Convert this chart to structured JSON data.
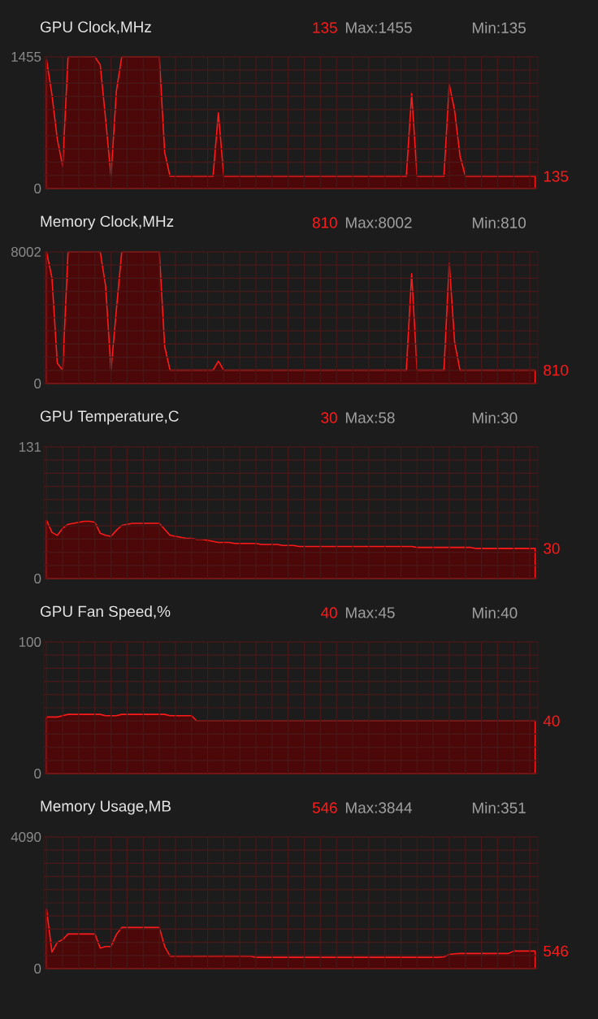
{
  "chart_data": [
    {
      "type": "area",
      "title": "GPU Clock,MHz",
      "color": "#ff1a1a",
      "grid": true,
      "tick_labels": "y",
      "categories": [
        null,
        null,
        null,
        null,
        null,
        null,
        null,
        null,
        null,
        null,
        null,
        null,
        null,
        null,
        null,
        null,
        null,
        null,
        null,
        null,
        null,
        null,
        null,
        null,
        null,
        null,
        null,
        null,
        null,
        null,
        null,
        null,
        null,
        null,
        null,
        null,
        null,
        null,
        null,
        null,
        null,
        null,
        null,
        null,
        null,
        null,
        null,
        null,
        null,
        null,
        null,
        null,
        null,
        null,
        null,
        null,
        null,
        null,
        null,
        null,
        null,
        null,
        null,
        null,
        null,
        null,
        null,
        null,
        null,
        null,
        null,
        null,
        null,
        null,
        null,
        null,
        null,
        null,
        null,
        null,
        null,
        null,
        null,
        null,
        null,
        null,
        null,
        null,
        null,
        null,
        null,
        null
      ],
      "ylim": [
        0,
        1455
      ],
      "yticks": [
        0,
        {
          "value": 145.5,
          "label": null
        },
        {
          "value": 291,
          "label": null
        },
        {
          "value": 436.5,
          "label": null
        },
        {
          "value": 582,
          "label": null
        },
        {
          "value": 727.5,
          "label": null
        },
        {
          "value": 873,
          "label": null
        },
        {
          "value": 1018.5,
          "label": null
        },
        {
          "value": 1164,
          "label": null
        },
        {
          "value": 1309.5,
          "label": null
        },
        1455
      ],
      "values": [
        1425,
        1036,
        547,
        246,
        1455,
        1455,
        1455,
        1455,
        1455,
        1455,
        1366,
        766,
        135,
        1076,
        1455,
        1455,
        1455,
        1455,
        1455,
        1455,
        1455,
        1455,
        399,
        135,
        135,
        135,
        135,
        135,
        135,
        135,
        135,
        135,
        836,
        135,
        135,
        135,
        135,
        135,
        135,
        135,
        135,
        135,
        135,
        135,
        135,
        135,
        135,
        135,
        135,
        135,
        135,
        135,
        135,
        135,
        135,
        135,
        135,
        135,
        135,
        135,
        135,
        135,
        135,
        135,
        135,
        135,
        135,
        135,
        1050,
        135,
        135,
        135,
        135,
        135,
        135,
        1150,
        860,
        362,
        135,
        135,
        135,
        135,
        135,
        135,
        135,
        135,
        135,
        135,
        135,
        135,
        135,
        135
      ],
      "annotations": [
        "135",
        "Max:1455",
        "Min:135",
        "135"
      ]
    },
    {
      "type": "area",
      "title": "Memory Clock,MHz",
      "color": "#ff1a1a",
      "grid": true,
      "tick_labels": "y",
      "categories": [
        null,
        null,
        null,
        null,
        null,
        null,
        null,
        null,
        null,
        null,
        null,
        null,
        null,
        null,
        null,
        null,
        null,
        null,
        null,
        null,
        null,
        null,
        null,
        null,
        null,
        null,
        null,
        null,
        null,
        null,
        null,
        null,
        null,
        null,
        null,
        null,
        null,
        null,
        null,
        null,
        null,
        null,
        null,
        null,
        null,
        null,
        null,
        null,
        null,
        null,
        null,
        null,
        null,
        null,
        null,
        null,
        null,
        null,
        null,
        null,
        null,
        null,
        null,
        null,
        null,
        null,
        null,
        null,
        null,
        null,
        null,
        null,
        null,
        null,
        null,
        null,
        null,
        null,
        null,
        null,
        null,
        null,
        null,
        null,
        null,
        null,
        null,
        null,
        null,
        null,
        null,
        null
      ],
      "ylim": [
        0,
        8002
      ],
      "yticks": [
        0,
        {
          "value": 800.2,
          "label": null
        },
        {
          "value": 1600.4,
          "label": null
        },
        {
          "value": 2400.6,
          "label": null
        },
        {
          "value": 3200.8,
          "label": null
        },
        {
          "value": 4001,
          "label": null
        },
        {
          "value": 4801.2,
          "label": null
        },
        {
          "value": 5601.4,
          "label": null
        },
        {
          "value": 6401.6,
          "label": null
        },
        {
          "value": 7201.8,
          "label": null
        },
        8002
      ],
      "values": [
        8002,
        6421,
        1251,
        810,
        8002,
        8002,
        8002,
        8002,
        8002,
        8002,
        8002,
        5933,
        810,
        4489,
        8002,
        8002,
        8002,
        8002,
        8002,
        8002,
        8002,
        8002,
        2248,
        810,
        810,
        810,
        810,
        810,
        810,
        810,
        810,
        810,
        1361,
        810,
        810,
        810,
        810,
        810,
        810,
        810,
        810,
        810,
        810,
        810,
        810,
        810,
        810,
        810,
        810,
        810,
        810,
        810,
        810,
        810,
        810,
        810,
        810,
        810,
        810,
        810,
        810,
        810,
        810,
        810,
        810,
        810,
        810,
        810,
        6683,
        810,
        810,
        810,
        810,
        810,
        810,
        7343,
        2510,
        810,
        810,
        810,
        810,
        810,
        810,
        810,
        810,
        810,
        810,
        810,
        810,
        810,
        810,
        810
      ],
      "annotations": [
        "810",
        "Max:8002",
        "Min:810",
        "810"
      ]
    },
    {
      "type": "area",
      "title": "GPU Temperature,C",
      "color": "#ff1a1a",
      "grid": true,
      "tick_labels": "y",
      "categories": [
        null,
        null,
        null,
        null,
        null,
        null,
        null,
        null,
        null,
        null,
        null,
        null,
        null,
        null,
        null,
        null,
        null,
        null,
        null,
        null,
        null,
        null,
        null,
        null,
        null,
        null,
        null,
        null,
        null,
        null,
        null,
        null,
        null,
        null,
        null,
        null,
        null,
        null,
        null,
        null,
        null,
        null,
        null,
        null,
        null,
        null,
        null,
        null,
        null,
        null,
        null,
        null,
        null,
        null,
        null,
        null,
        null,
        null,
        null,
        null,
        null,
        null,
        null,
        null,
        null,
        null,
        null,
        null,
        null,
        null,
        null,
        null,
        null,
        null,
        null,
        null,
        null,
        null,
        null,
        null,
        null,
        null,
        null,
        null,
        null,
        null,
        null,
        null,
        null,
        null,
        null,
        null
      ],
      "ylim": [
        0,
        131
      ],
      "yticks": [
        0,
        {
          "value": 13.1,
          "label": null
        },
        {
          "value": 26.2,
          "label": null
        },
        {
          "value": 39.3,
          "label": null
        },
        {
          "value": 52.4,
          "label": null
        },
        {
          "value": 65.5,
          "label": null
        },
        {
          "value": 78.6,
          "label": null
        },
        {
          "value": 91.7,
          "label": null
        },
        {
          "value": 104.8,
          "label": null
        },
        {
          "value": 117.9,
          "label": null
        },
        131
      ],
      "values": [
        58,
        46,
        43,
        50,
        54,
        55,
        56,
        57,
        57,
        56,
        45,
        43,
        42,
        48,
        53,
        54,
        55,
        55,
        55,
        55,
        55,
        55,
        49,
        43,
        42,
        41,
        40,
        40,
        39,
        39,
        38,
        37,
        36,
        36,
        36,
        35,
        35,
        35,
        35,
        35,
        34,
        34,
        34,
        34,
        33,
        33,
        33,
        32,
        32,
        32,
        32,
        32,
        32,
        32,
        32,
        32,
        32,
        32,
        32,
        32,
        32,
        32,
        32,
        32,
        32,
        32,
        32,
        32,
        32,
        31,
        31,
        31,
        31,
        31,
        31,
        31,
        31,
        31,
        31,
        31,
        30,
        30,
        30,
        30,
        30,
        30,
        30,
        30,
        30,
        30,
        30,
        30
      ],
      "annotations": [
        "30",
        "Max:58",
        "Min:30",
        "30"
      ]
    },
    {
      "type": "area",
      "title": "GPU Fan Speed,%",
      "color": "#ff1a1a",
      "grid": true,
      "tick_labels": "y",
      "categories": [
        null,
        null,
        null,
        null,
        null,
        null,
        null,
        null,
        null,
        null,
        null,
        null,
        null,
        null,
        null,
        null,
        null,
        null,
        null,
        null,
        null,
        null,
        null,
        null,
        null,
        null,
        null,
        null,
        null,
        null,
        null,
        null,
        null,
        null,
        null,
        null,
        null,
        null,
        null,
        null,
        null,
        null,
        null,
        null,
        null,
        null,
        null,
        null,
        null,
        null,
        null,
        null,
        null,
        null,
        null,
        null,
        null,
        null,
        null,
        null,
        null,
        null,
        null,
        null,
        null,
        null,
        null,
        null,
        null,
        null,
        null,
        null,
        null,
        null,
        null,
        null,
        null,
        null,
        null,
        null,
        null,
        null,
        null,
        null,
        null,
        null,
        null,
        null,
        null,
        null,
        null,
        null
      ],
      "ylim": [
        0,
        100
      ],
      "yticks": [
        0,
        {
          "value": 10,
          "label": null
        },
        {
          "value": 20,
          "label": null
        },
        {
          "value": 30,
          "label": null
        },
        {
          "value": 40,
          "label": null
        },
        {
          "value": 50,
          "label": null
        },
        {
          "value": 60,
          "label": null
        },
        {
          "value": 70,
          "label": null
        },
        {
          "value": 80,
          "label": null
        },
        {
          "value": 90,
          "label": null
        },
        100
      ],
      "values": [
        43,
        43,
        43,
        44,
        45,
        45,
        45,
        45,
        45,
        45,
        45,
        44,
        44,
        44,
        45,
        45,
        45,
        45,
        45,
        45,
        45,
        45,
        45,
        44,
        44,
        44,
        44,
        44,
        40,
        40,
        40,
        40,
        40,
        40,
        40,
        40,
        40,
        40,
        40,
        40,
        40,
        40,
        40,
        40,
        40,
        40,
        40,
        40,
        40,
        40,
        40,
        40,
        40,
        40,
        40,
        40,
        40,
        40,
        40,
        40,
        40,
        40,
        40,
        40,
        40,
        40,
        40,
        40,
        40,
        40,
        40,
        40,
        40,
        40,
        40,
        40,
        40,
        40,
        40,
        40,
        40,
        40,
        40,
        40,
        40,
        40,
        40,
        40,
        40,
        40,
        40,
        40
      ],
      "annotations": [
        "40",
        "Max:45",
        "Min:40",
        "40"
      ]
    },
    {
      "type": "area",
      "title": "Memory Usage,MB",
      "color": "#ff1a1a",
      "grid": true,
      "tick_labels": "y",
      "categories": [
        null,
        null,
        null,
        null,
        null,
        null,
        null,
        null,
        null,
        null,
        null,
        null,
        null,
        null,
        null,
        null,
        null,
        null,
        null,
        null,
        null,
        null,
        null,
        null,
        null,
        null,
        null,
        null,
        null,
        null,
        null,
        null,
        null,
        null,
        null,
        null,
        null,
        null,
        null,
        null,
        null,
        null,
        null,
        null,
        null,
        null,
        null,
        null,
        null,
        null,
        null,
        null,
        null,
        null,
        null,
        null,
        null,
        null,
        null,
        null,
        null,
        null,
        null,
        null,
        null,
        null,
        null,
        null,
        null,
        null,
        null,
        null,
        null,
        null,
        null,
        null,
        null,
        null,
        null,
        null,
        null,
        null,
        null,
        null,
        null,
        null,
        null,
        null,
        null,
        null,
        null,
        null
      ],
      "ylim": [
        0,
        4090
      ],
      "yticks": [
        0,
        {
          "value": 409,
          "label": null
        },
        {
          "value": 818,
          "label": null
        },
        {
          "value": 1227,
          "label": null
        },
        {
          "value": 1636,
          "label": null
        },
        {
          "value": 2045,
          "label": null
        },
        {
          "value": 2454,
          "label": null
        },
        {
          "value": 2863,
          "label": null
        },
        {
          "value": 3272,
          "label": null
        },
        {
          "value": 3681,
          "label": null
        },
        4090
      ],
      "values": [
        1851,
        512,
        818,
        902,
        1077,
        1077,
        1077,
        1077,
        1077,
        1077,
        640,
        690,
        690,
        1060,
        1279,
        1279,
        1279,
        1279,
        1279,
        1279,
        1279,
        1279,
        685,
        387,
        387,
        387,
        387,
        387,
        387,
        387,
        387,
        387,
        387,
        387,
        387,
        387,
        387,
        387,
        387,
        351,
        351,
        351,
        351,
        351,
        351,
        351,
        351,
        351,
        351,
        351,
        351,
        351,
        351,
        351,
        351,
        351,
        351,
        351,
        351,
        351,
        351,
        351,
        351,
        351,
        351,
        351,
        351,
        351,
        351,
        351,
        351,
        351,
        351,
        351,
        368,
        442,
        460,
        471,
        471,
        471,
        471,
        471,
        471,
        471,
        471,
        471,
        471,
        546,
        546,
        546,
        546,
        546
      ],
      "annotations": [
        "546",
        "Max:3844",
        "Min:351",
        "546"
      ]
    }
  ]
}
